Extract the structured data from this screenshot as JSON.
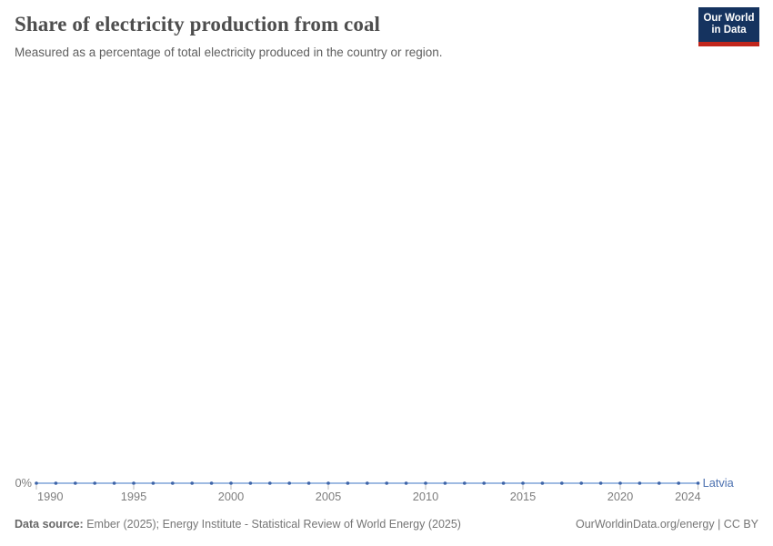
{
  "header": {
    "title": "Share of electricity production from coal",
    "subtitle": "Measured as a percentage of total electricity produced in the country or region.",
    "logo_line1": "Our World",
    "logo_line2": "in Data",
    "logo_colors": {
      "background": "#15335f",
      "underline": "#c1261c",
      "text": "#ffffff"
    }
  },
  "footer": {
    "data_source_label": "Data source:",
    "data_source_value": "Ember (2025); Energy Institute - Statistical Review of World Energy (2025)",
    "attribution": "OurWorldinData.org/energy | CC BY"
  },
  "chart_data": {
    "type": "line",
    "title": "Share of electricity production from coal",
    "entity": "Latvia",
    "unit": "%",
    "x": [
      1990,
      1991,
      1992,
      1993,
      1994,
      1995,
      1996,
      1997,
      1998,
      1999,
      2000,
      2001,
      2002,
      2003,
      2004,
      2005,
      2006,
      2007,
      2008,
      2009,
      2010,
      2011,
      2012,
      2013,
      2014,
      2015,
      2016,
      2017,
      2018,
      2019,
      2020,
      2021,
      2022,
      2023,
      2024
    ],
    "series": [
      {
        "name": "Latvia",
        "values": [
          0,
          0,
          0,
          0,
          0,
          0,
          0,
          0,
          0,
          0,
          0,
          0,
          0,
          0,
          0,
          0,
          0,
          0,
          0,
          0,
          0,
          0,
          0,
          0,
          0,
          0,
          0,
          0,
          0,
          0,
          0,
          0,
          0,
          0,
          0
        ]
      }
    ],
    "xlim": [
      1990,
      2024
    ],
    "x_ticks": [
      1990,
      1995,
      2000,
      2005,
      2010,
      2015,
      2020,
      2024
    ],
    "y_ticks": [
      "0%"
    ],
    "grid": false,
    "legend_position": "end-of-line",
    "colors": {
      "line": "#9fbbe2",
      "marker": "#3d64a8",
      "entity_label": "#4c71b0",
      "axis_text": "#7d7d7d",
      "tick_mark": "#bdbdbd"
    }
  }
}
